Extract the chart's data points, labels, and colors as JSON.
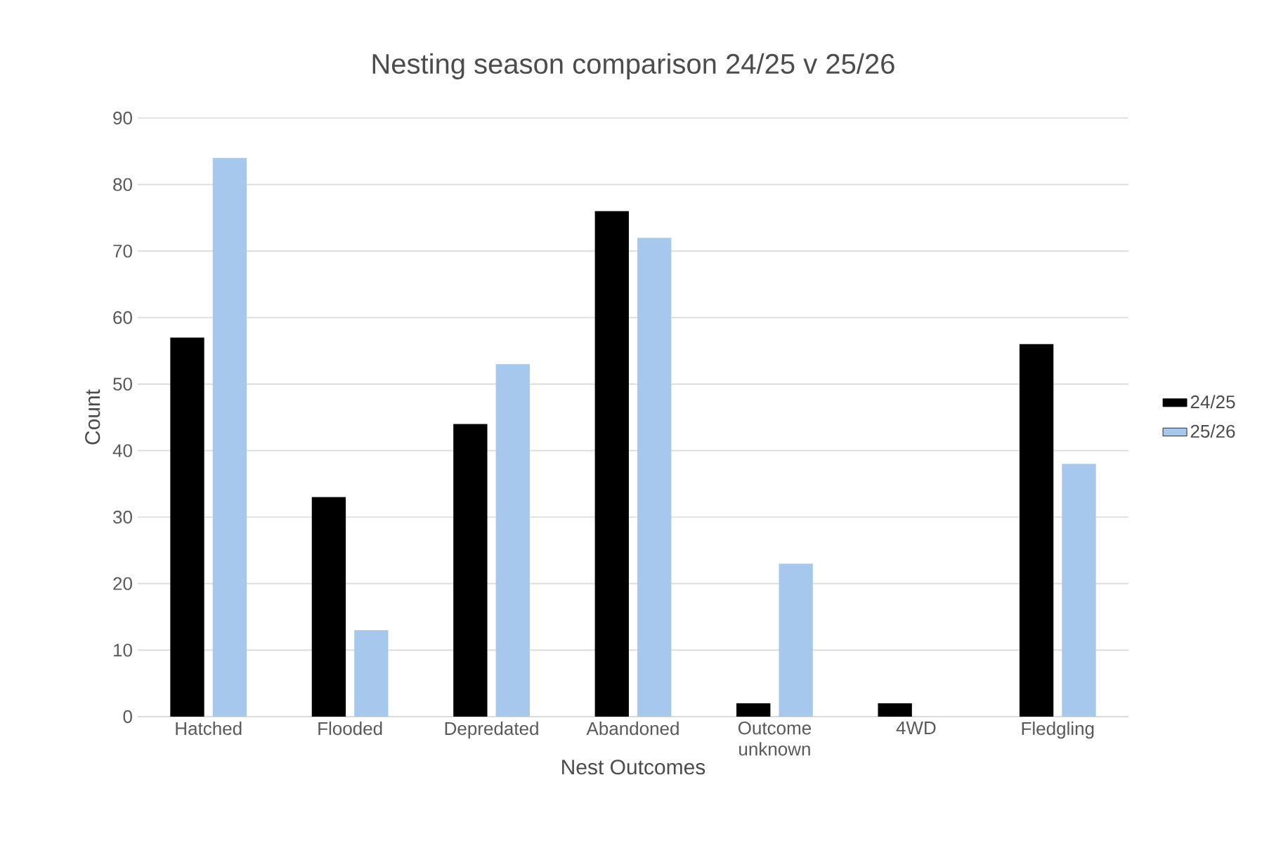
{
  "chart_data": {
    "type": "bar",
    "title": "Nesting season comparison 24/25 v 25/26",
    "xlabel": "Nest Outcomes",
    "ylabel": "Count",
    "categories": [
      "Hatched",
      "Flooded",
      "Depredated",
      "Abandoned",
      "Outcome unknown",
      "4WD",
      "Fledgling"
    ],
    "series": [
      {
        "name": "24/25",
        "color": "#000000",
        "values": [
          57,
          33,
          44,
          76,
          2,
          2,
          56
        ]
      },
      {
        "name": "25/26",
        "color": "#a6c8ec",
        "values": [
          84,
          13,
          53,
          72,
          23,
          0,
          38
        ]
      }
    ],
    "ylim": [
      0,
      90
    ],
    "yticks": [
      0,
      10,
      20,
      30,
      40,
      50,
      60,
      70,
      80,
      90
    ],
    "grid": "y",
    "legend": "right"
  }
}
